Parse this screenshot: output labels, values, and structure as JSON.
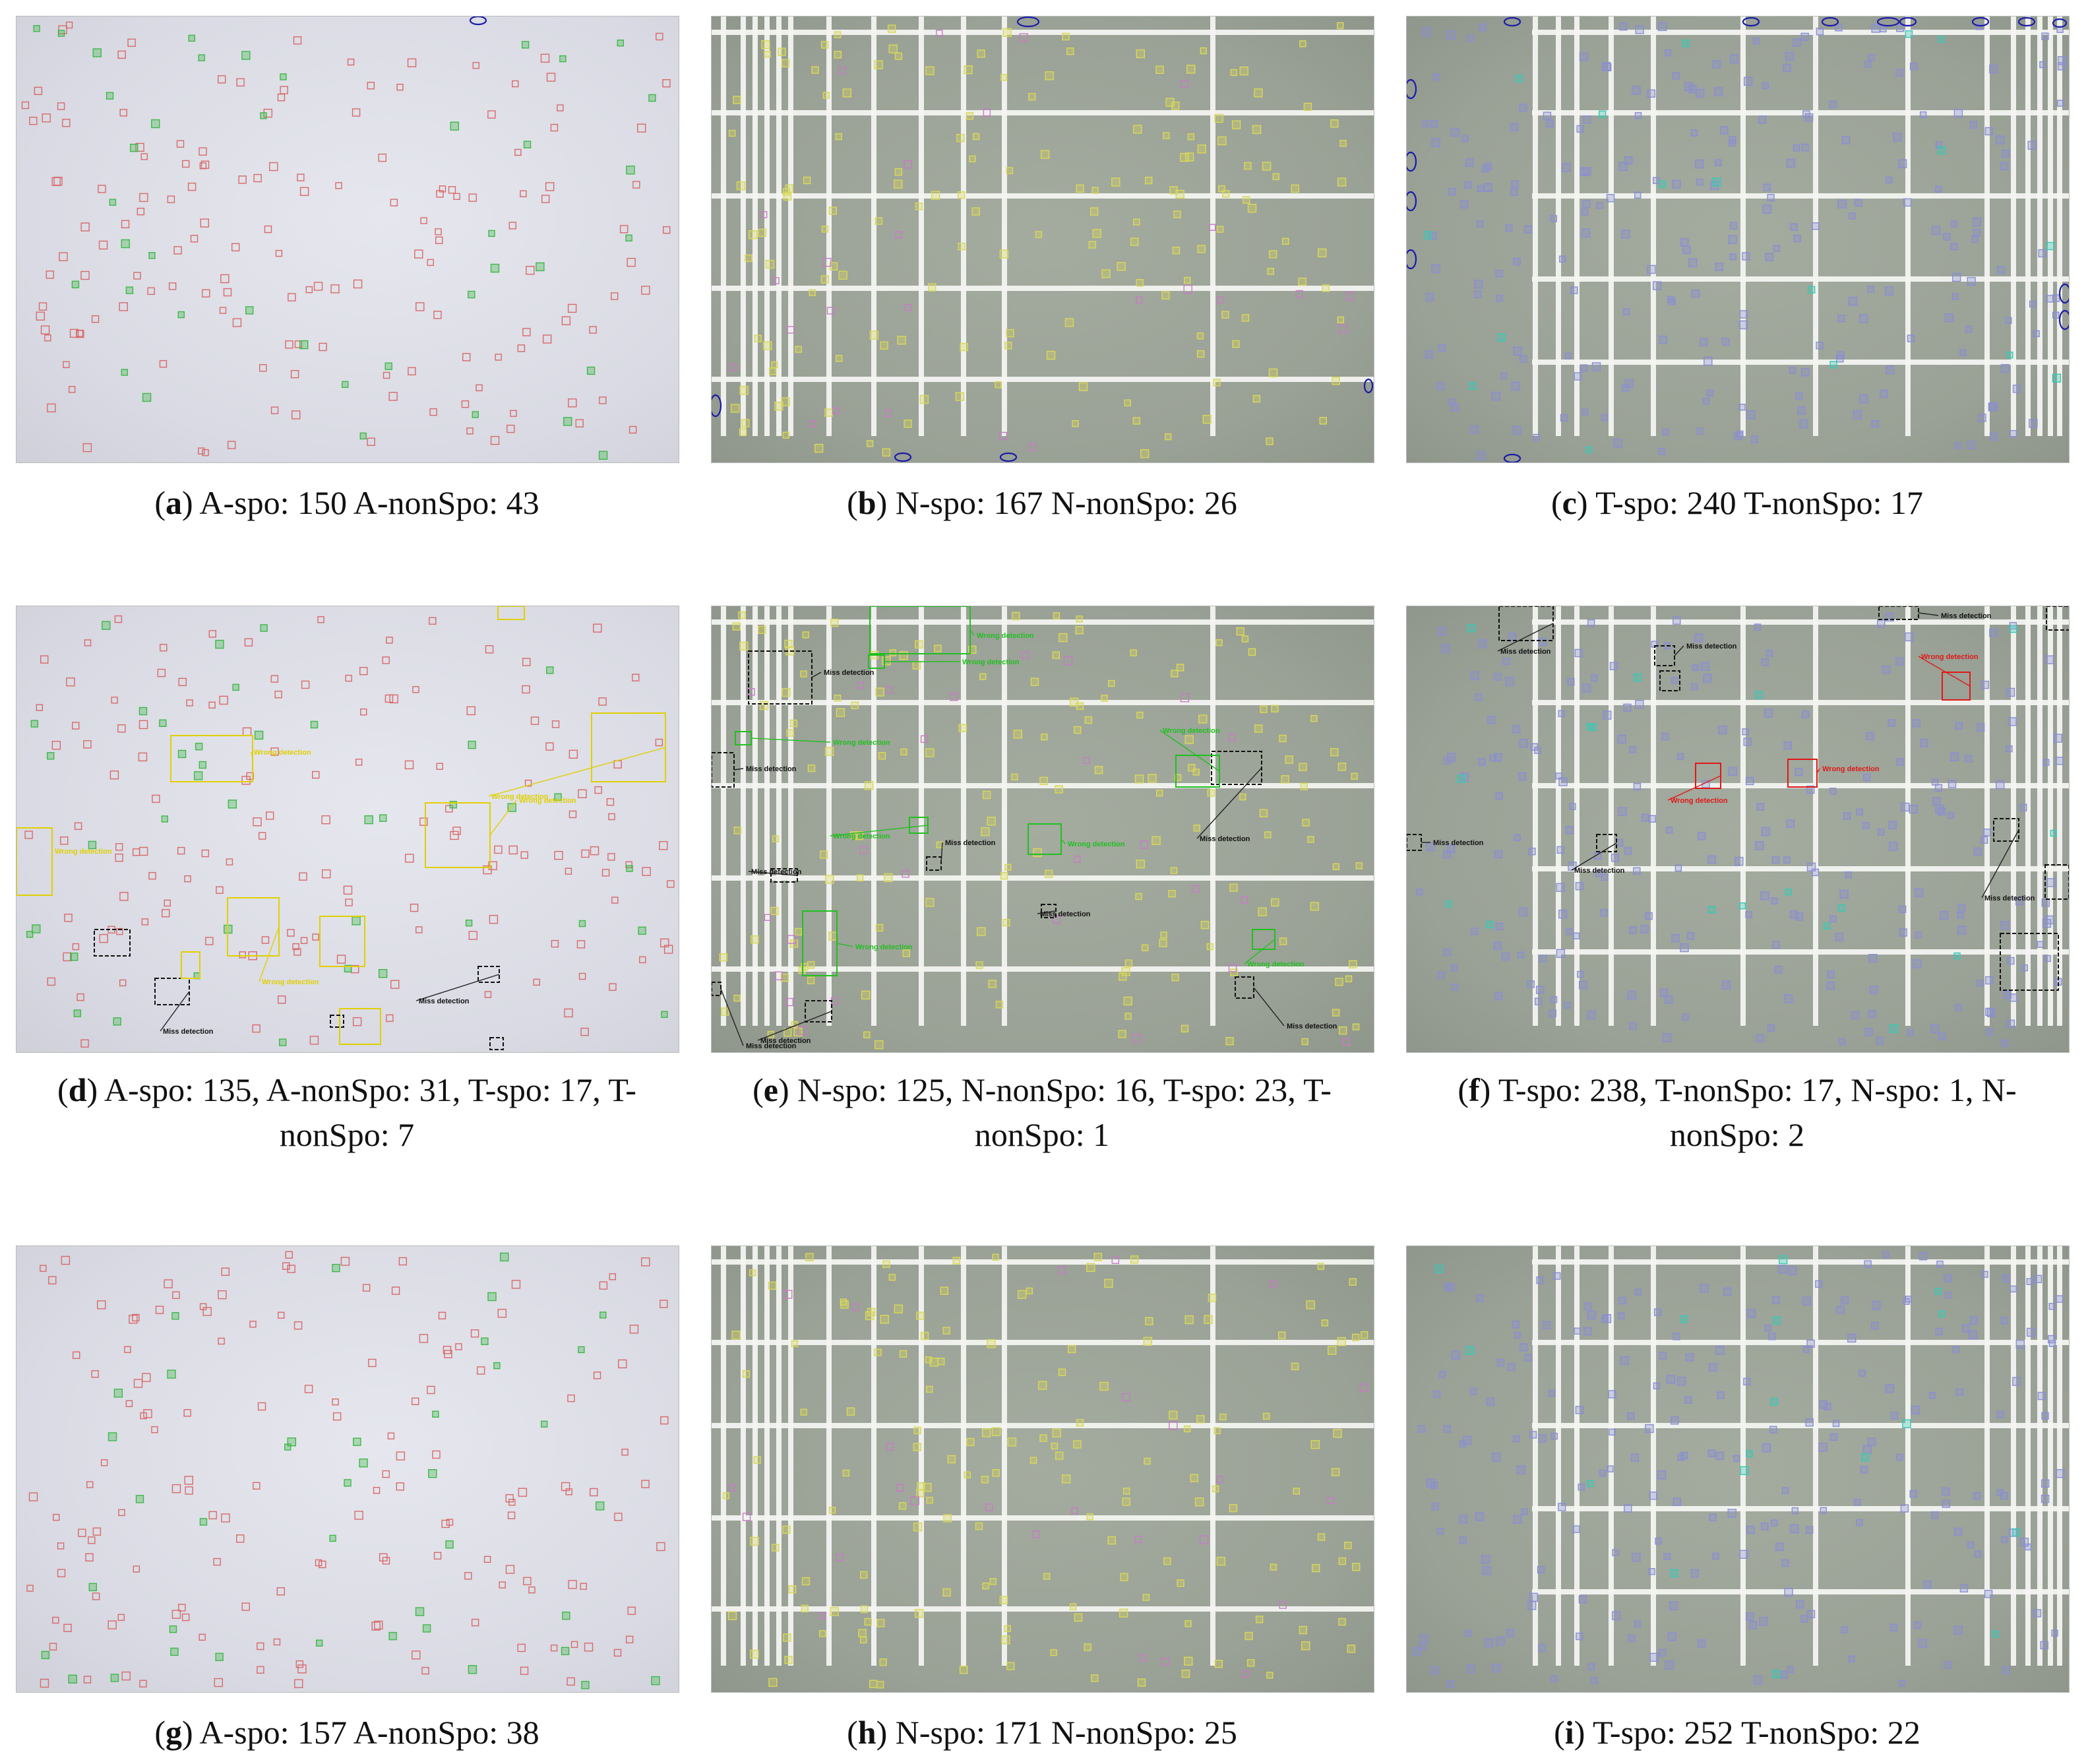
{
  "figure": {
    "panels": [
      {
        "letter": "a",
        "text": "A-spo: 150 A-nonSpo: 43",
        "style": "light",
        "grid": false,
        "annotations": []
      },
      {
        "letter": "b",
        "text": "N-spo: 167 N-nonSpo: 26",
        "style": "dark",
        "grid": true,
        "annotations": []
      },
      {
        "letter": "c",
        "text": "T-spo: 240 T-nonSpo: 17",
        "style": "dark",
        "grid": true,
        "annotations": []
      },
      {
        "letter": "d",
        "text": "A-spo: 135, A-nonSpo: 31, T-spo: 17, T-nonSpo: 7",
        "style": "light",
        "grid": false,
        "annotations": [
          "Wrong detection",
          "Wrong detection",
          "Wrong detection",
          "Wrong detection",
          "Wrong detection",
          "Miss detection",
          "Miss detection"
        ]
      },
      {
        "letter": "e",
        "text": "N-spo: 125, N-nonSpo: 16, T-spo: 23, T-nonSpo: 1",
        "style": "dark",
        "grid": true,
        "annotations": [
          "Miss detection",
          "Wrong detection",
          "Miss detection",
          "Wrong detection",
          "Wrong detection",
          "Miss detection",
          "Wrong detection",
          "Miss detection",
          "Miss detection",
          "Wrong detection",
          "Wrong detection",
          "Miss detection",
          "Miss detection",
          "Wrong detection",
          "Wrong detection",
          "Miss detection",
          "Miss detection"
        ]
      },
      {
        "letter": "f",
        "text": "T-spo: 238, T-nonSpo: 17, N-spo: 1, N-nonSpo: 2",
        "style": "dark",
        "grid": true,
        "annotations": [
          "Miss detection",
          "Miss detection",
          "Miss detection",
          "Wrong detection",
          "Wrong detection",
          "Wrong detection",
          "Miss detection",
          "Miss detection",
          "Miss detection"
        ]
      },
      {
        "letter": "g",
        "text": "A-spo: 157 A-nonSpo: 38",
        "style": "light",
        "grid": false,
        "annotations": []
      },
      {
        "letter": "h",
        "text": "N-spo: 171 N-nonSpo: 25",
        "style": "dark",
        "grid": true,
        "annotations": []
      },
      {
        "letter": "i",
        "text": "T-spo: 252 T-nonSpo: 22",
        "style": "dark",
        "grid": true,
        "annotations": []
      }
    ]
  },
  "colors": {
    "a_spo_box": "#d86a6a",
    "a_nonspo_box": "#3fb84a",
    "n_spo_box": "#d8d85a",
    "n_nonspo_box": "#c87ac8",
    "t_spo_box": "#8a8fd0",
    "t_nonspo_box": "#3cc8b4",
    "miss": "#111111",
    "wrong_yellow": "#e0d000",
    "wrong_green": "#20c020",
    "wrong_red": "#e01818",
    "ellipse": "#1a1aa8"
  }
}
